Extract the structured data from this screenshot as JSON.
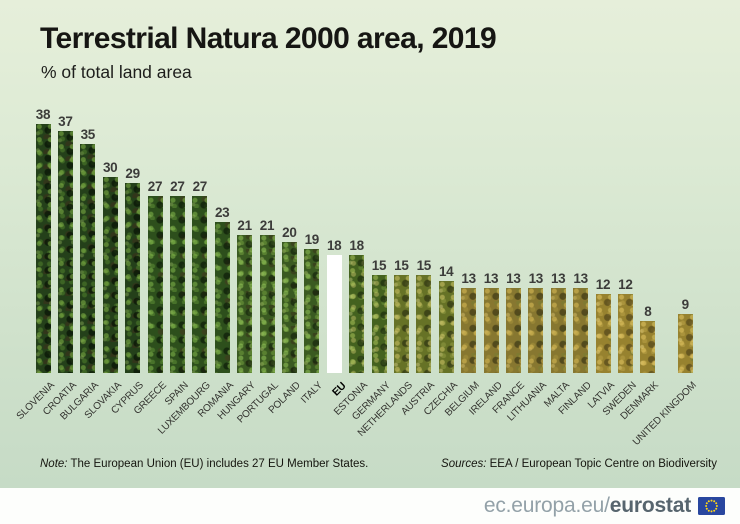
{
  "header": {
    "title": "Terrestrial Natura 2000 area, 2019",
    "subtitle": "% of total land area"
  },
  "chart_data": {
    "type": "bar",
    "title": "Terrestrial Natura 2000 area, 2019",
    "ylabel": "% of total land area",
    "unit": "%",
    "ylim": [
      0,
      40
    ],
    "grid": false,
    "legend": "none",
    "bar_fill": "forest-photo-texture",
    "highlight_category": "EU",
    "highlight_fill": "#ffffff",
    "separated_category": "UNITED KINGDOM",
    "categories": [
      "SLOVENIA",
      "CROATIA",
      "BULGARIA",
      "SLOVAKIA",
      "CYPRUS",
      "GREECE",
      "SPAIN",
      "LUXEMBOURG",
      "ROMANIA",
      "HUNGARY",
      "PORTUGAL",
      "POLAND",
      "ITALY",
      "EU",
      "ESTONIA",
      "GERMANY",
      "NETHERLANDS",
      "AUSTRIA",
      "CZECHIA",
      "BELGIUM",
      "IRELAND",
      "FRANCE",
      "LITHUANIA",
      "MALTA",
      "FINLAND",
      "LATVIA",
      "SWEDEN",
      "DENMARK",
      "UNITED KINGDOM"
    ],
    "values": [
      38,
      37,
      35,
      30,
      29,
      27,
      27,
      27,
      23,
      21,
      21,
      20,
      19,
      18,
      18,
      15,
      15,
      15,
      14,
      13,
      13,
      13,
      13,
      13,
      13,
      12,
      12,
      8,
      9
    ]
  },
  "note": {
    "label": "Note:",
    "text": " The European Union (EU) includes 27 EU Member States."
  },
  "sources": {
    "label": "Sources:",
    "text": " EEA / European Topic Centre on Biodiversity"
  },
  "footer": {
    "url_plain": "ec.europa.eu/",
    "url_bold": "eurostat",
    "flag_icon": "eu-flag-icon"
  },
  "colors": {
    "background_top": "#e6efda",
    "background_bottom": "#c6dbc6",
    "eu_bar": "#ffffff",
    "title_text": "#161613",
    "value_text": "#3c3c3a",
    "footer_text": "#93a1a8",
    "footer_text_bold": "#57656e",
    "flag_blue": "#29479f",
    "flag_stars": "#ffd617"
  }
}
